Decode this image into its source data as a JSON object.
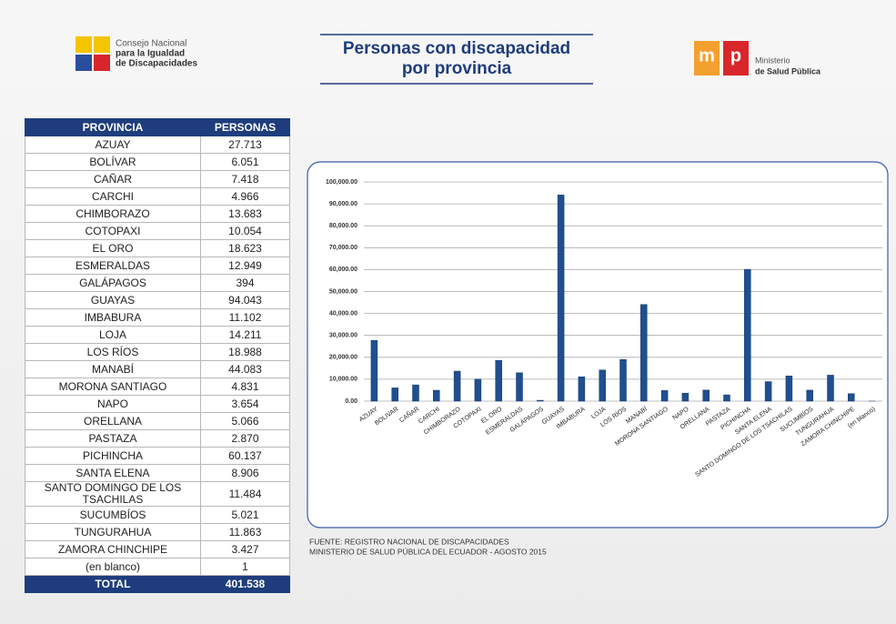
{
  "header": {
    "left_logo_text": [
      "Consejo Nacional",
      "para la Igualdad",
      "de Discapacidades"
    ],
    "title": [
      "Personas con discapacidad",
      "por provincia"
    ],
    "right_logo_letters": [
      "m",
      "p"
    ],
    "right_logo_text": [
      "Ministerio",
      "de Salud Pública"
    ]
  },
  "table": {
    "header": [
      "PROVINCIA",
      "PERSONAS"
    ],
    "rows": [
      [
        "AZUAY",
        "27.713"
      ],
      [
        "BOLÍVAR",
        "6.051"
      ],
      [
        "CAÑAR",
        "7.418"
      ],
      [
        "CARCHI",
        "4.966"
      ],
      [
        "CHIMBORAZO",
        "13.683"
      ],
      [
        "COTOPAXI",
        "10.054"
      ],
      [
        "EL ORO",
        "18.623"
      ],
      [
        "ESMERALDAS",
        "12.949"
      ],
      [
        "GALÁPAGOS",
        "394"
      ],
      [
        "GUAYAS",
        "94.043"
      ],
      [
        "IMBABURA",
        "11.102"
      ],
      [
        "LOJA",
        "14.211"
      ],
      [
        "LOS RÍOS",
        "18.988"
      ],
      [
        "MANABÍ",
        "44.083"
      ],
      [
        "MORONA SANTIAGO",
        "4.831"
      ],
      [
        "NAPO",
        "3.654"
      ],
      [
        "ORELLANA",
        "5.066"
      ],
      [
        "PASTAZA",
        "2.870"
      ],
      [
        "PICHINCHA",
        "60.137"
      ],
      [
        "SANTA ELENA",
        "8.906"
      ],
      [
        "SANTO DOMINGO DE LOS TSACHILAS",
        "11.484"
      ],
      [
        "SUCUMBÍOS",
        "5.021"
      ],
      [
        "TUNGURAHUA",
        "11.863"
      ],
      [
        "ZAMORA CHINCHIPE",
        "3.427"
      ],
      [
        "(en blanco)",
        "1"
      ]
    ],
    "total": [
      "TOTAL",
      "401.538"
    ]
  },
  "chart_data": {
    "type": "bar",
    "categories": [
      "AZUAY",
      "BOLIVAR",
      "CAÑAR",
      "CARCHI",
      "CHIMBORAZO",
      "COTOPAXI",
      "EL ORO",
      "ESMERALDAS",
      "GALÁPAGOS",
      "GUAYAS",
      "IMBABURA",
      "LOJA",
      "LOS RÍOS",
      "MANABÍ",
      "MORONA SANTIAGO",
      "NAPO",
      "ORELLANA",
      "PASTAZA",
      "PICHINCHA",
      "SANTA ELENA",
      "SANTO DOMINGO DE LOS TSACHILAS",
      "SUCUMBÍOS",
      "TUNGURAHUA",
      "ZAMORA CHINCHIPE",
      "(en blanco)"
    ],
    "values": [
      27713,
      6051,
      7418,
      4966,
      13683,
      10054,
      18623,
      12949,
      394,
      94043,
      11102,
      14211,
      18988,
      44083,
      4831,
      3654,
      5066,
      2870,
      60137,
      8906,
      11484,
      5021,
      11863,
      3427,
      1
    ],
    "color": "#1f4f8f",
    "ylim": [
      0,
      100000
    ],
    "yticks": [
      {
        "value": 0,
        "label": "0.00"
      },
      {
        "value": 10000,
        "label": "10,000.00"
      },
      {
        "value": 20000,
        "label": "20,000.00"
      },
      {
        "value": 30000,
        "label": "30,000.00"
      },
      {
        "value": 40000,
        "label": "40,000.00"
      },
      {
        "value": 50000,
        "label": "50,000.00"
      },
      {
        "value": 60000,
        "label": "60,000.00"
      },
      {
        "value": 70000,
        "label": "70,000.00"
      },
      {
        "value": 80000,
        "label": "80,000.00"
      },
      {
        "value": 90000,
        "label": "90,000.00"
      },
      {
        "value": 100000,
        "label": "100,000.00"
      }
    ],
    "grid": true
  },
  "source": [
    "FUENTE: REGISTRO NACIONAL DE DISCAPACIDADES",
    "MINISTERIO DE SALUD PÚBLICA DEL ECUADOR - AGOSTO 2015"
  ]
}
